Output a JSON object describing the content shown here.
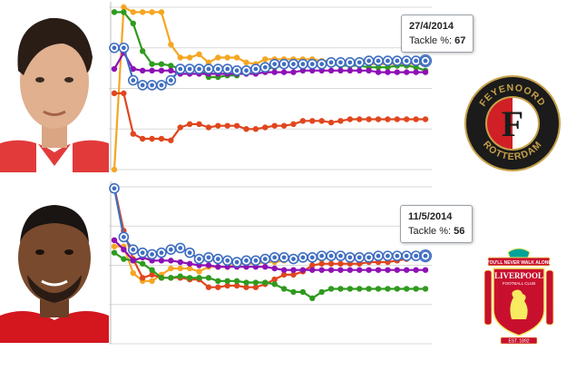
{
  "chart_data": [
    {
      "type": "line",
      "ylim": [
        0,
        100
      ],
      "grid": true,
      "x": [
        1,
        2,
        3,
        4,
        5,
        6,
        7,
        8,
        9,
        10,
        11,
        12,
        13,
        14,
        15,
        16,
        17,
        18,
        19,
        20,
        21,
        22,
        23,
        24,
        25,
        26,
        27,
        28,
        29,
        30,
        31,
        32,
        33,
        34
      ],
      "series": [
        {
          "color": "#f5a623",
          "values": [
            0,
            100,
            97,
            97,
            97,
            97,
            77,
            69,
            69,
            71,
            66,
            69,
            69,
            69,
            66,
            65,
            68,
            68,
            68,
            68,
            68,
            68,
            67,
            67,
            67,
            67,
            66,
            65,
            65,
            65,
            65,
            65,
            65,
            65
          ]
        },
        {
          "color": "#2f9a1e",
          "values": [
            97,
            97,
            90,
            73,
            65,
            65,
            64,
            62,
            62,
            62,
            57,
            57,
            58,
            58,
            62,
            63,
            62,
            63,
            64,
            65,
            65,
            65,
            65,
            65,
            64,
            64,
            64,
            63,
            63,
            63,
            64,
            64,
            63,
            61
          ]
        },
        {
          "color": "#8e10b5",
          "values": [
            62,
            72,
            62,
            61,
            61,
            61,
            61,
            59,
            59,
            59,
            59,
            59,
            59,
            59,
            59,
            59,
            60,
            60,
            60,
            60,
            61,
            61,
            61,
            61,
            61,
            61,
            61,
            61,
            60,
            60,
            60,
            60,
            60,
            60
          ]
        },
        {
          "color": "#e0461e",
          "values": [
            47,
            47,
            22,
            19,
            19,
            19,
            18,
            26,
            28,
            28,
            26,
            27,
            27,
            27,
            25,
            25,
            26,
            27,
            27,
            28,
            30,
            30,
            30,
            29,
            30,
            31,
            31,
            31,
            31,
            31,
            31,
            31,
            31,
            31
          ]
        },
        {
          "color": "#3f6ec2",
          "values": [
            75,
            75,
            55,
            52,
            52,
            52,
            55,
            62,
            62,
            62,
            62,
            62,
            62,
            61,
            61,
            62,
            63,
            65,
            65,
            65,
            65,
            65,
            65,
            66,
            66,
            66,
            66,
            67,
            67,
            67,
            67,
            67,
            67,
            67
          ]
        }
      ],
      "tooltip": {
        "date": "27/4/2014",
        "label": "Tackle %: ",
        "value": "67"
      }
    },
    {
      "type": "line",
      "ylim": [
        0,
        100
      ],
      "grid": true,
      "x": [
        1,
        2,
        3,
        4,
        5,
        6,
        7,
        8,
        9,
        10,
        11,
        12,
        13,
        14,
        15,
        16,
        17,
        18,
        19,
        20,
        21,
        22,
        23,
        24,
        25,
        26,
        27,
        28,
        29,
        30,
        31,
        32,
        33,
        34
      ],
      "series": [
        {
          "color": "#f5a623",
          "values": [
            62,
            62,
            45,
            40,
            40,
            44,
            48,
            48,
            48,
            46,
            49,
            49,
            49,
            51,
            51,
            51,
            52,
            52,
            53,
            54,
            54,
            54,
            54,
            55,
            56,
            56,
            56,
            56,
            56,
            56,
            56,
            56,
            56,
            56
          ]
        },
        {
          "color": "#e0461e",
          "values": [
            100,
            72,
            54,
            42,
            44,
            42,
            42,
            42,
            41,
            41,
            36,
            36,
            37,
            37,
            36,
            36,
            38,
            41,
            44,
            44,
            46,
            50,
            51,
            51,
            51,
            51,
            51,
            52,
            52,
            52,
            53,
            54,
            56,
            56
          ]
        },
        {
          "color": "#2f9a1e",
          "values": [
            58,
            54,
            53,
            51,
            47,
            42,
            42,
            43,
            42,
            42,
            42,
            40,
            40,
            40,
            39,
            39,
            39,
            38,
            35,
            33,
            33,
            29,
            33,
            35,
            35,
            35,
            35,
            35,
            35,
            35,
            35,
            35,
            35,
            35
          ]
        },
        {
          "color": "#8e10b5",
          "values": [
            66,
            60,
            53,
            55,
            53,
            53,
            53,
            52,
            51,
            50,
            50,
            49,
            49,
            49,
            49,
            49,
            49,
            48,
            47,
            47,
            47,
            47,
            47,
            47,
            47,
            47,
            47,
            47,
            47,
            47,
            47,
            47,
            47,
            47
          ]
        },
        {
          "color": "#3f6ec2",
          "values": [
            99,
            68,
            60,
            58,
            57,
            58,
            60,
            61,
            58,
            54,
            55,
            54,
            53,
            52,
            53,
            53,
            54,
            55,
            55,
            54,
            55,
            55,
            56,
            56,
            56,
            55,
            55,
            55,
            56,
            56,
            56,
            56,
            56,
            56
          ]
        }
      ],
      "tooltip": {
        "date": "11/5/2014",
        "label": "Tackle %: ",
        "value": "56"
      }
    }
  ],
  "logos": {
    "feyenoord": {
      "top": "FEYENOORD",
      "bottom": "ROTTERDAM",
      "letter": "F",
      "colors": {
        "ring": "#1b1b1b",
        "red": "#d11f26",
        "white": "#ffffff",
        "gold": "#c7a14a"
      }
    },
    "liverpool": {
      "banner": "YOU'LL NEVER WALK ALONE",
      "name": "LIVERPOOL",
      "club": "FOOTBALL CLUB",
      "est": "EST. 1892",
      "colors": {
        "red": "#c8102e",
        "green": "#00a398",
        "gold": "#f6eb61"
      }
    }
  },
  "photos": {
    "top": "player-photo-top",
    "bottom": "player-photo-bottom"
  }
}
